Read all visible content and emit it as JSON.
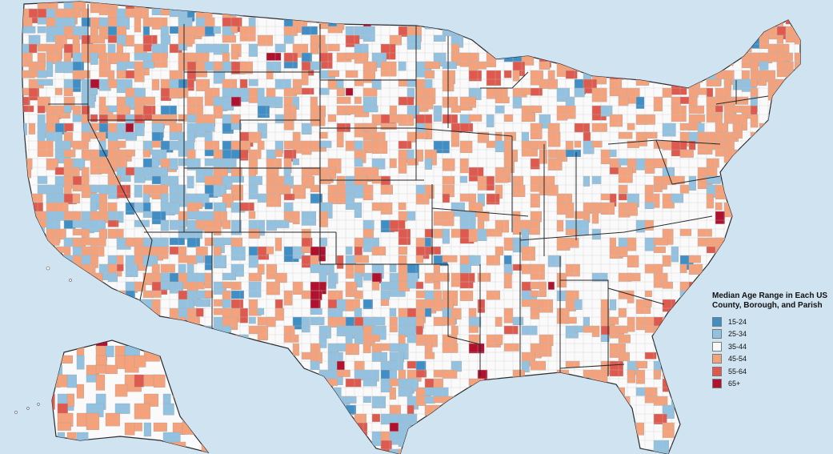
{
  "legend": {
    "title": "Median Age Range in Each US\nCounty, Borough, and Parish",
    "items": [
      {
        "label": "15-24",
        "color": "#3f8ec6"
      },
      {
        "label": "25-34",
        "color": "#93c2e0"
      },
      {
        "label": "35-44",
        "color": "#fafafa"
      },
      {
        "label": "45-54",
        "color": "#f4a27c"
      },
      {
        "label": "55-64",
        "color": "#de5a4f"
      },
      {
        "label": "65+",
        "color": "#b0112e"
      }
    ]
  },
  "colors": {
    "water": "#cfe3f1",
    "land": "#fafafa",
    "state_border": "#2a2a2a",
    "county_border": "#9a9a9a"
  }
}
